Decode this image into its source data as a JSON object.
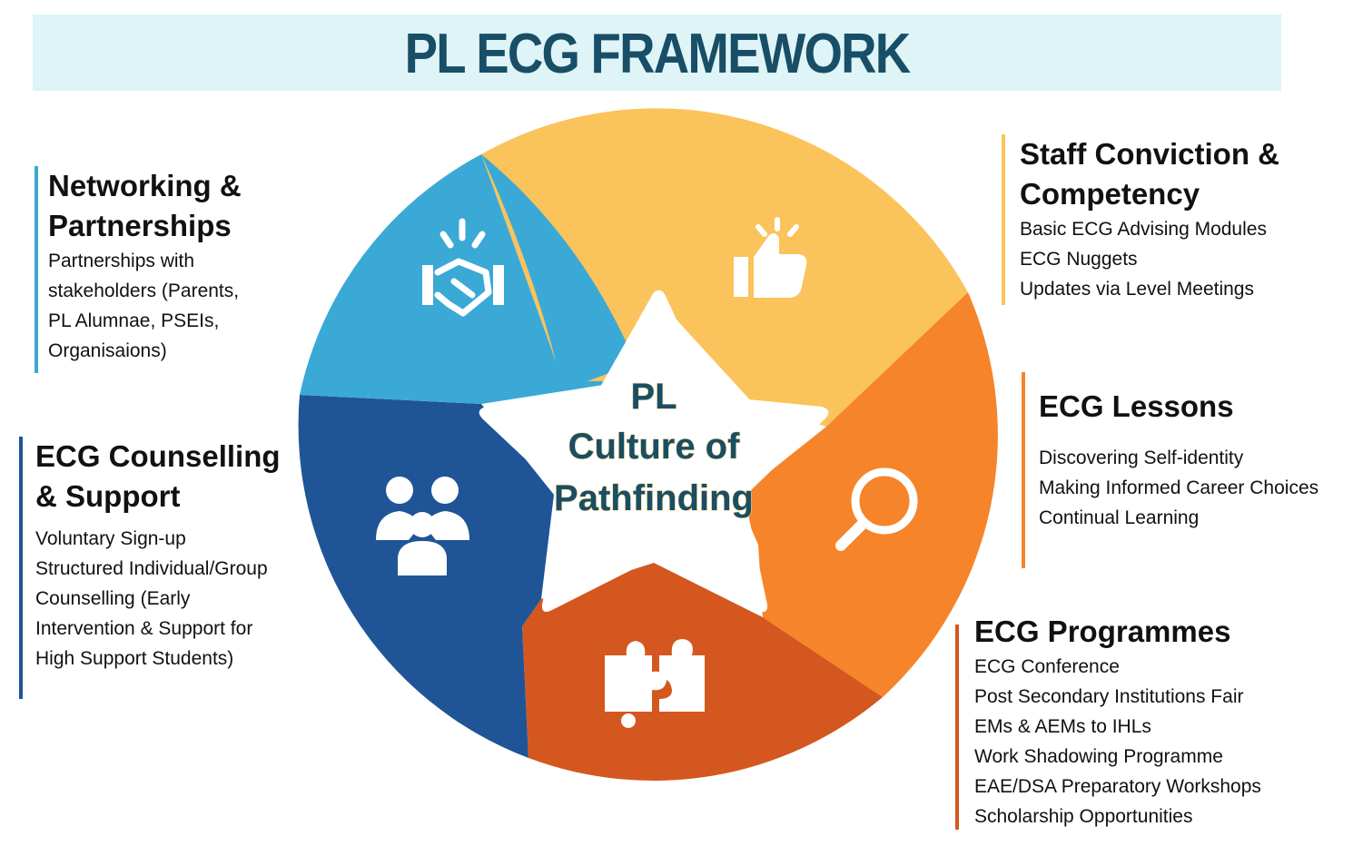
{
  "title": "PL ECG FRAMEWORK",
  "center": {
    "line1": "PL",
    "line2": "Culture of",
    "line3": "Pathfinding"
  },
  "colors": {
    "networking": "#3aa9d6",
    "staff": "#fbc35b",
    "lessons": "#f6842a",
    "programmes": "#d4571f",
    "counselling": "#1f5596",
    "title_bg": "#def4f7",
    "title_text": "#184e66"
  },
  "sections": {
    "networking": {
      "heading_1": "Networking &",
      "heading_2": "Partnerships",
      "icon": "handshake-icon",
      "items": [
        "Partnerships with",
        "stakeholders (Parents,",
        "PL Alumnae, PSEIs,",
        "Organisaions)"
      ]
    },
    "staff": {
      "heading_1": "Staff Conviction &",
      "heading_2": "Competency",
      "icon": "thumbs-up-icon",
      "items": [
        "Basic ECG Advising Modules",
        "ECG Nuggets",
        "Updates via Level Meetings"
      ]
    },
    "lessons": {
      "heading_1": "ECG Lessons",
      "icon": "magnifier-icon",
      "items": [
        "Discovering Self-identity",
        "Making Informed Career Choices",
        "Continual Learning"
      ]
    },
    "counselling": {
      "heading_1": "ECG Counselling",
      "heading_2": "& Support",
      "icon": "people-group-icon",
      "items": [
        "Voluntary Sign-up",
        "Structured Individual/Group",
        "Counselling (Early",
        "Intervention & Support for",
        "High Support Students)"
      ]
    },
    "programmes": {
      "heading_1": "ECG Programmes",
      "icon": "puzzle-icon",
      "items": [
        "ECG Conference",
        "Post Secondary Institutions Fair",
        "EMs & AEMs to IHLs",
        "Work Shadowing Programme",
        "EAE/DSA Preparatory Workshops",
        "Scholarship Opportunities"
      ]
    }
  }
}
